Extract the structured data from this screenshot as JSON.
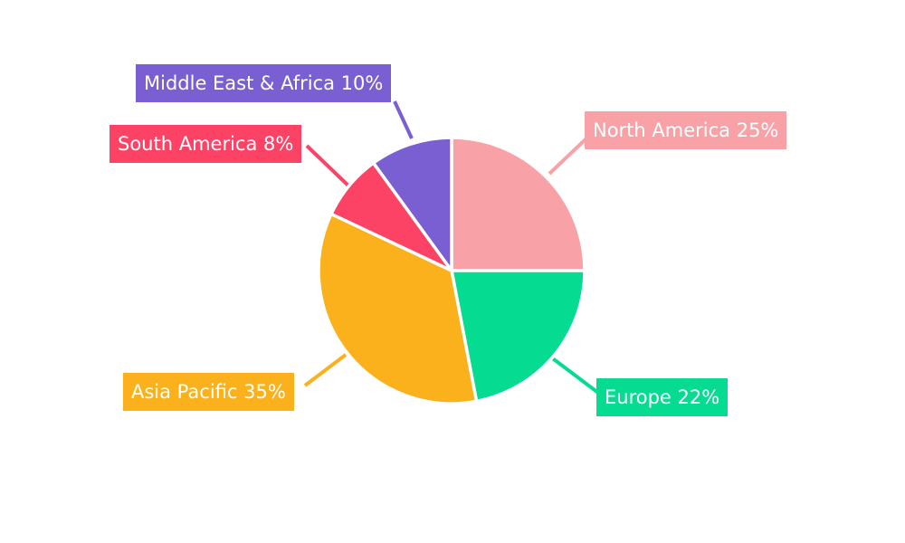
{
  "chart_data": {
    "type": "pie",
    "title": "",
    "legend": "none",
    "background": "#ffffff",
    "start_angle_deg": 0,
    "direction": "clockwise",
    "slices": [
      {
        "label": "North America",
        "value": 25,
        "color": "#F8A2A8",
        "text": "North America 25%"
      },
      {
        "label": "Europe",
        "value": 22,
        "color": "#06DB92",
        "text": "Europe 22%"
      },
      {
        "label": "Asia Pacific",
        "value": 35,
        "color": "#FBB11B",
        "text": "Asia Pacific 35%"
      },
      {
        "label": "South America",
        "value": 8,
        "color": "#FC4365",
        "text": "South America 8%"
      },
      {
        "label": "Middle East & Africa",
        "value": 10,
        "color": "#7A5FD2",
        "text": "Middle East & Africa 10%"
      }
    ]
  }
}
